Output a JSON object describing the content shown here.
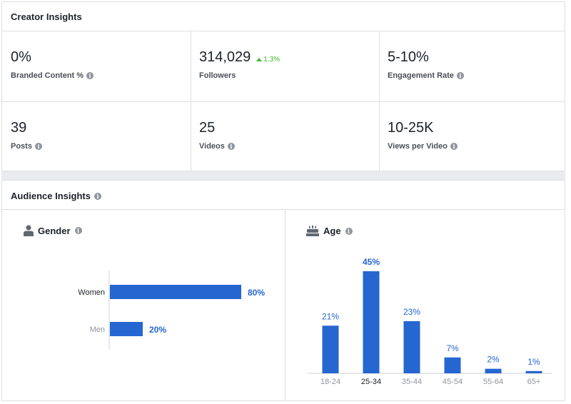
{
  "creator": {
    "title": "Creator Insights",
    "metrics": [
      {
        "value": "0%",
        "label": "Branded Content %"
      },
      {
        "value": "314,029",
        "label": "Followers",
        "change": "1.3%"
      },
      {
        "value": "5-10%",
        "label": "Engagement Rate"
      },
      {
        "value": "39",
        "label": "Posts"
      },
      {
        "value": "25",
        "label": "Videos"
      },
      {
        "value": "10-25K",
        "label": "Views per Video"
      }
    ]
  },
  "audience": {
    "title": "Audience Insights",
    "gender_title": "Gender",
    "age_title": "Age"
  },
  "colors": {
    "bar": "#2566d1",
    "label": "#2566d1",
    "positive": "#42b72a",
    "info": "#90949c"
  },
  "chart_data": [
    {
      "type": "bar",
      "orientation": "horizontal",
      "title": "Gender",
      "categories": [
        "Women",
        "Men"
      ],
      "values": [
        80,
        20
      ],
      "value_labels": [
        "80%",
        "20%"
      ]
    },
    {
      "type": "bar",
      "title": "Age",
      "categories": [
        "18-24",
        "25-34",
        "35-44",
        "45-54",
        "55-64",
        "65+"
      ],
      "values": [
        21,
        45,
        23,
        7,
        2,
        1
      ],
      "value_labels": [
        "21%",
        "45%",
        "23%",
        "7%",
        "2%",
        "1%"
      ],
      "highlighted_category": "25-34"
    }
  ]
}
